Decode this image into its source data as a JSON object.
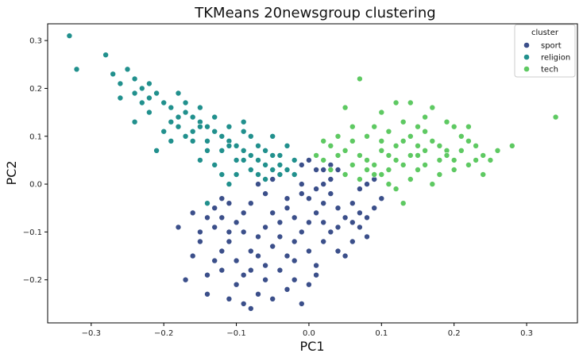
{
  "chart_data": {
    "type": "scatter",
    "title": "TKMeans 20newsgroup clustering",
    "xlabel": "PC1",
    "ylabel": "PC2",
    "xlim": [
      -0.36,
      0.37
    ],
    "ylim": [
      -0.29,
      0.335
    ],
    "xticks": [
      -0.3,
      -0.2,
      -0.1,
      0.0,
      0.1,
      0.2,
      0.3
    ],
    "xtick_labels": [
      "−0.3",
      "−0.2",
      "−0.1",
      "0.0",
      "0.1",
      "0.2",
      "0.3"
    ],
    "yticks": [
      -0.2,
      -0.1,
      0.0,
      0.1,
      0.2,
      0.3
    ],
    "ytick_labels": [
      "−0.2",
      "−0.1",
      "0.0",
      "0.1",
      "0.2",
      "0.3"
    ],
    "grid": false,
    "legend": {
      "title": "cluster",
      "position": "top-right",
      "entries": [
        "sport",
        "religion",
        "tech"
      ]
    },
    "series": [
      {
        "name": "sport",
        "color": "#3b4f8a",
        "points": [
          [
            -0.12,
            -0.03
          ],
          [
            -0.11,
            -0.04
          ],
          [
            -0.14,
            -0.07
          ],
          [
            -0.13,
            -0.09
          ],
          [
            -0.15,
            -0.12
          ],
          [
            -0.16,
            -0.15
          ],
          [
            -0.17,
            -0.2
          ],
          [
            -0.14,
            -0.19
          ],
          [
            -0.12,
            -0.18
          ],
          [
            -0.1,
            -0.21
          ],
          [
            -0.09,
            -0.25
          ],
          [
            -0.08,
            -0.26
          ],
          [
            -0.07,
            -0.23
          ],
          [
            -0.05,
            -0.24
          ],
          [
            -0.03,
            -0.22
          ],
          [
            -0.01,
            -0.25
          ],
          [
            0.0,
            -0.21
          ],
          [
            -0.18,
            -0.09
          ],
          [
            -0.16,
            -0.06
          ],
          [
            -0.14,
            -0.23
          ],
          [
            -0.13,
            -0.16
          ],
          [
            -0.11,
            -0.12
          ],
          [
            -0.09,
            -0.1
          ],
          [
            -0.08,
            -0.14
          ],
          [
            -0.06,
            -0.17
          ],
          [
            -0.05,
            -0.13
          ],
          [
            -0.04,
            -0.08
          ],
          [
            -0.03,
            -0.03
          ],
          [
            -0.02,
            0.02
          ],
          [
            -0.01,
            0.04
          ],
          [
            0.0,
            0.05
          ],
          [
            0.01,
            0.03
          ],
          [
            0.02,
            0.0
          ],
          [
            0.03,
            -0.02
          ],
          [
            0.04,
            -0.05
          ],
          [
            0.05,
            -0.07
          ],
          [
            0.06,
            -0.04
          ],
          [
            0.07,
            -0.01
          ],
          [
            0.08,
            0.0
          ],
          [
            0.09,
            0.01
          ],
          [
            0.05,
            0.02
          ],
          [
            0.04,
            0.03
          ],
          [
            0.03,
            0.01
          ],
          [
            0.02,
            -0.04
          ],
          [
            0.01,
            -0.06
          ],
          [
            0.0,
            -0.08
          ],
          [
            -0.01,
            -0.1
          ],
          [
            -0.02,
            -0.12
          ],
          [
            -0.03,
            -0.15
          ],
          [
            -0.04,
            -0.18
          ],
          [
            0.0,
            -0.14
          ],
          [
            0.01,
            -0.17
          ],
          [
            0.02,
            -0.12
          ],
          [
            0.03,
            -0.1
          ],
          [
            0.04,
            -0.14
          ],
          [
            0.05,
            -0.15
          ],
          [
            0.06,
            -0.12
          ],
          [
            0.07,
            -0.09
          ],
          [
            0.08,
            -0.07
          ],
          [
            0.1,
            -0.03
          ],
          [
            0.07,
            -0.06
          ],
          [
            -0.06,
            -0.02
          ],
          [
            -0.07,
            0.0
          ],
          [
            -0.05,
            0.01
          ],
          [
            -0.04,
            0.02
          ],
          [
            -0.08,
            -0.04
          ],
          [
            -0.09,
            -0.06
          ],
          [
            -0.1,
            -0.08
          ],
          [
            -0.11,
            -0.1
          ],
          [
            -0.07,
            -0.11
          ],
          [
            -0.05,
            -0.06
          ],
          [
            -0.03,
            -0.05
          ],
          [
            -0.02,
            -0.07
          ],
          [
            -0.01,
            -0.02
          ],
          [
            0.01,
            -0.01
          ],
          [
            0.02,
            0.03
          ],
          [
            -0.03,
            0.03
          ],
          [
            -0.06,
            -0.2
          ],
          [
            -0.08,
            -0.18
          ],
          [
            -0.1,
            -0.16
          ],
          [
            -0.12,
            -0.14
          ],
          [
            -0.15,
            -0.1
          ],
          [
            -0.04,
            -0.11
          ],
          [
            -0.02,
            -0.16
          ],
          [
            0.02,
            -0.08
          ],
          [
            0.04,
            -0.09
          ],
          [
            0.06,
            -0.08
          ],
          [
            0.0,
            -0.03
          ],
          [
            -0.01,
            0.0
          ],
          [
            0.03,
            0.04
          ],
          [
            -0.13,
            -0.05
          ],
          [
            -0.12,
            -0.07
          ],
          [
            -0.06,
            -0.09
          ],
          [
            -0.07,
            -0.15
          ],
          [
            -0.09,
            -0.19
          ],
          [
            -0.11,
            -0.24
          ],
          [
            0.01,
            -0.19
          ],
          [
            -0.02,
            -0.2
          ],
          [
            0.08,
            -0.11
          ],
          [
            0.09,
            -0.05
          ]
        ]
      },
      {
        "name": "religion",
        "color": "#21908d",
        "points": [
          [
            -0.33,
            0.31
          ],
          [
            -0.32,
            0.24
          ],
          [
            -0.28,
            0.27
          ],
          [
            -0.27,
            0.23
          ],
          [
            -0.26,
            0.18
          ],
          [
            -0.25,
            0.24
          ],
          [
            -0.24,
            0.22
          ],
          [
            -0.23,
            0.2
          ],
          [
            -0.24,
            0.13
          ],
          [
            -0.22,
            0.21
          ],
          [
            -0.21,
            0.19
          ],
          [
            -0.2,
            0.17
          ],
          [
            -0.19,
            0.16
          ],
          [
            -0.18,
            0.19
          ],
          [
            -0.17,
            0.15
          ],
          [
            -0.16,
            0.14
          ],
          [
            -0.15,
            0.13
          ],
          [
            -0.14,
            0.12
          ],
          [
            -0.13,
            0.11
          ],
          [
            -0.12,
            0.1
          ],
          [
            -0.11,
            0.09
          ],
          [
            -0.1,
            0.08
          ],
          [
            -0.09,
            0.07
          ],
          [
            -0.08,
            0.06
          ],
          [
            -0.07,
            0.05
          ],
          [
            -0.06,
            0.04
          ],
          [
            -0.05,
            0.03
          ],
          [
            -0.04,
            0.02
          ],
          [
            -0.03,
            0.03
          ],
          [
            -0.02,
            0.05
          ],
          [
            -0.16,
            0.11
          ],
          [
            -0.15,
            0.16
          ],
          [
            -0.14,
            0.09
          ],
          [
            -0.13,
            0.14
          ],
          [
            -0.12,
            0.07
          ],
          [
            -0.11,
            0.12
          ],
          [
            -0.1,
            0.05
          ],
          [
            -0.09,
            0.11
          ],
          [
            -0.08,
            0.03
          ],
          [
            -0.07,
            0.08
          ],
          [
            -0.06,
            0.01
          ],
          [
            -0.05,
            0.06
          ],
          [
            -0.04,
            0.04
          ],
          [
            -0.18,
            0.12
          ],
          [
            -0.17,
            0.1
          ],
          [
            -0.19,
            0.13
          ],
          [
            -0.2,
            0.11
          ],
          [
            -0.21,
            0.07
          ],
          [
            -0.22,
            0.15
          ],
          [
            -0.12,
            0.02
          ],
          [
            -0.13,
            0.04
          ],
          [
            -0.14,
            0.07
          ],
          [
            -0.09,
            0.13
          ],
          [
            -0.08,
            0.1
          ],
          [
            -0.05,
            0.1
          ],
          [
            -0.03,
            0.08
          ],
          [
            -0.14,
            -0.04
          ],
          [
            -0.11,
            0.0
          ],
          [
            -0.1,
            0.02
          ],
          [
            -0.07,
            0.02
          ],
          [
            -0.15,
            0.05
          ],
          [
            -0.16,
            0.09
          ],
          [
            -0.19,
            0.09
          ],
          [
            -0.23,
            0.17
          ],
          [
            -0.26,
            0.21
          ],
          [
            -0.24,
            0.19
          ],
          [
            -0.22,
            0.18
          ],
          [
            -0.18,
            0.14
          ],
          [
            -0.17,
            0.17
          ],
          [
            -0.15,
            0.12
          ],
          [
            -0.11,
            0.08
          ],
          [
            -0.09,
            0.05
          ],
          [
            -0.06,
            0.07
          ],
          [
            -0.04,
            0.06
          ],
          [
            -0.02,
            0.02
          ]
        ]
      },
      {
        "name": "tech",
        "color": "#5ec962",
        "points": [
          [
            0.34,
            0.14
          ],
          [
            0.28,
            0.08
          ],
          [
            0.26,
            0.07
          ],
          [
            0.25,
            0.05
          ],
          [
            0.24,
            0.06
          ],
          [
            0.23,
            0.08
          ],
          [
            0.22,
            0.09
          ],
          [
            0.21,
            0.1
          ],
          [
            0.2,
            0.12
          ],
          [
            0.19,
            0.07
          ],
          [
            0.18,
            0.05
          ],
          [
            0.17,
            0.09
          ],
          [
            0.16,
            0.14
          ],
          [
            0.15,
            0.06
          ],
          [
            0.14,
            0.1
          ],
          [
            0.13,
            0.04
          ],
          [
            0.12,
            0.08
          ],
          [
            0.11,
            0.03
          ],
          [
            0.1,
            0.07
          ],
          [
            0.09,
            0.02
          ],
          [
            0.08,
            0.05
          ],
          [
            0.07,
            0.01
          ],
          [
            0.06,
            0.04
          ],
          [
            0.05,
            0.02
          ],
          [
            0.04,
            0.06
          ],
          [
            0.03,
            0.03
          ],
          [
            0.02,
            0.05
          ],
          [
            0.07,
            0.22
          ],
          [
            0.12,
            0.17
          ],
          [
            0.1,
            0.15
          ],
          [
            0.14,
            0.17
          ],
          [
            0.17,
            0.16
          ],
          [
            0.15,
            0.12
          ],
          [
            0.13,
            0.13
          ],
          [
            0.11,
            0.11
          ],
          [
            0.09,
            0.12
          ],
          [
            0.08,
            0.1
          ],
          [
            0.06,
            0.09
          ],
          [
            0.05,
            0.07
          ],
          [
            0.04,
            0.1
          ],
          [
            0.03,
            0.08
          ],
          [
            0.02,
            0.09
          ],
          [
            0.01,
            0.06
          ],
          [
            0.16,
            0.04
          ],
          [
            0.18,
            0.02
          ],
          [
            0.2,
            0.03
          ],
          [
            0.22,
            0.04
          ],
          [
            0.24,
            0.02
          ],
          [
            0.13,
            -0.04
          ],
          [
            0.12,
            -0.01
          ],
          [
            0.11,
            0.0
          ],
          [
            0.1,
            0.02
          ],
          [
            0.14,
            0.01
          ],
          [
            0.17,
            0.0
          ],
          [
            0.19,
            0.06
          ],
          [
            0.21,
            0.07
          ],
          [
            0.23,
            0.05
          ],
          [
            0.15,
            0.08
          ],
          [
            0.16,
            0.07
          ],
          [
            0.18,
            0.08
          ],
          [
            0.12,
            0.05
          ],
          [
            0.11,
            0.06
          ],
          [
            0.09,
            0.04
          ],
          [
            0.08,
            0.03
          ],
          [
            0.07,
            0.06
          ],
          [
            0.14,
            0.06
          ],
          [
            0.15,
            0.03
          ],
          [
            0.13,
            0.09
          ],
          [
            0.1,
            0.09
          ],
          [
            0.2,
            0.05
          ],
          [
            0.05,
            0.16
          ],
          [
            0.16,
            0.11
          ],
          [
            0.19,
            0.13
          ],
          [
            0.22,
            0.12
          ],
          [
            0.06,
            0.12
          ]
        ]
      }
    ]
  }
}
